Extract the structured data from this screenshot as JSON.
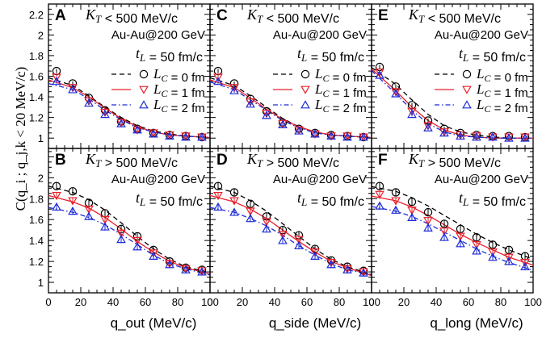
{
  "y_axis_label": "C(q_i ; q_j,k < 20 MeV/c)",
  "x_axis_labels": {
    "out": "q_out (MeV/c)",
    "side": "q_side (MeV/c)",
    "long": "q_long (MeV/c)"
  },
  "colors": {
    "lc0": "#000000",
    "lc1": "#e8202a",
    "lc2": "#1c2bd6"
  },
  "chart_data": [
    {
      "type": "line",
      "panel": "A",
      "kt_label": "K_T < 500 MeV/c",
      "system": "Au-Au@200 GeV",
      "tl": "t_L = 50 fm/c",
      "xlabel": "q_out (MeV/c)",
      "ylabel": "C",
      "xlim": [
        0,
        100
      ],
      "ylim": [
        0.9,
        2.3
      ],
      "legend": [
        "L_C = 0 fm",
        "L_C = 1 fm",
        "L_C = 2 fm"
      ],
      "x": [
        5,
        15,
        25,
        35,
        45,
        55,
        65,
        75,
        85,
        95
      ],
      "series": [
        {
          "name": "L_C = 0 fm",
          "marker": "circle",
          "values": [
            1.65,
            1.53,
            1.39,
            1.27,
            1.16,
            1.09,
            1.05,
            1.03,
            1.02,
            1.01
          ],
          "curve": [
            1.56,
            1.51,
            1.41,
            1.3,
            1.2,
            1.12,
            1.07,
            1.04,
            1.02,
            1.01
          ]
        },
        {
          "name": "L_C = 1 fm",
          "marker": "triangle-down",
          "values": [
            1.59,
            1.49,
            1.36,
            1.25,
            1.15,
            1.08,
            1.05,
            1.03,
            1.02,
            1.01
          ],
          "curve": [
            1.54,
            1.49,
            1.4,
            1.29,
            1.19,
            1.11,
            1.06,
            1.03,
            1.02,
            1.01
          ]
        },
        {
          "name": "L_C = 2 fm",
          "marker": "triangle-up",
          "values": [
            1.55,
            1.47,
            1.34,
            1.23,
            1.14,
            1.08,
            1.04,
            1.02,
            1.01,
            1.01
          ],
          "curve": [
            1.51,
            1.47,
            1.38,
            1.27,
            1.18,
            1.1,
            1.06,
            1.03,
            1.02,
            1.01
          ]
        }
      ]
    },
    {
      "type": "line",
      "panel": "C",
      "kt_label": "K_T < 500 MeV/c",
      "system": "Au-Au@200 GeV",
      "tl": "t_L = 50 fm/c",
      "xlabel": "q_side (MeV/c)",
      "ylabel": "C",
      "xlim": [
        0,
        100
      ],
      "ylim": [
        0.9,
        2.3
      ],
      "legend": [
        "L_C = 0 fm",
        "L_C = 1 fm",
        "L_C = 2 fm"
      ],
      "x": [
        5,
        15,
        25,
        35,
        45,
        55,
        65,
        75,
        85,
        95
      ],
      "series": [
        {
          "name": "L_C = 0 fm",
          "marker": "circle",
          "values": [
            1.65,
            1.53,
            1.38,
            1.26,
            1.15,
            1.09,
            1.05,
            1.03,
            1.02,
            1.01
          ],
          "curve": [
            1.56,
            1.51,
            1.41,
            1.3,
            1.19,
            1.11,
            1.06,
            1.03,
            1.02,
            1.01
          ]
        },
        {
          "name": "L_C = 1 fm",
          "marker": "triangle-down",
          "values": [
            1.59,
            1.49,
            1.35,
            1.24,
            1.14,
            1.08,
            1.04,
            1.02,
            1.02,
            1.01
          ],
          "curve": [
            1.54,
            1.49,
            1.39,
            1.28,
            1.18,
            1.11,
            1.06,
            1.03,
            1.02,
            1.01
          ]
        },
        {
          "name": "L_C = 2 fm",
          "marker": "triangle-up",
          "values": [
            1.55,
            1.46,
            1.33,
            1.22,
            1.13,
            1.07,
            1.04,
            1.02,
            1.01,
            1.01
          ],
          "curve": [
            1.52,
            1.47,
            1.37,
            1.27,
            1.17,
            1.1,
            1.05,
            1.03,
            1.02,
            1.01
          ]
        }
      ]
    },
    {
      "type": "line",
      "panel": "E",
      "kt_label": "K_T < 500 MeV/c",
      "system": "Au-Au@200 GeV",
      "tl": "t_L = 50 fm/c",
      "xlabel": "q_long (MeV/c)",
      "ylabel": "C",
      "xlim": [
        0,
        100
      ],
      "ylim": [
        0.9,
        2.3
      ],
      "legend": [
        "L_C = 0 fm",
        "L_C = 1 fm",
        "L_C = 2 fm"
      ],
      "x": [
        5,
        15,
        25,
        35,
        45,
        55,
        65,
        75,
        85,
        95
      ],
      "series": [
        {
          "name": "L_C = 0 fm",
          "marker": "circle",
          "values": [
            1.69,
            1.5,
            1.32,
            1.17,
            1.09,
            1.05,
            1.03,
            1.02,
            1.02,
            1.01
          ],
          "curve": [
            1.63,
            1.52,
            1.37,
            1.23,
            1.12,
            1.06,
            1.03,
            1.01,
            1.0,
            1.0
          ]
        },
        {
          "name": "L_C = 1 fm",
          "marker": "triangle-down",
          "values": [
            1.64,
            1.45,
            1.26,
            1.12,
            1.06,
            1.03,
            1.02,
            1.01,
            1.01,
            1.01
          ],
          "curve": [
            1.6,
            1.46,
            1.3,
            1.17,
            1.08,
            1.03,
            1.01,
            1.0,
            1.0,
            1.0
          ]
        },
        {
          "name": "L_C = 2 fm",
          "marker": "triangle-up",
          "values": [
            1.61,
            1.43,
            1.23,
            1.1,
            1.05,
            1.02,
            1.01,
            1.01,
            1.0,
            1.0
          ],
          "curve": [
            1.58,
            1.43,
            1.27,
            1.14,
            1.06,
            1.02,
            1.01,
            1.0,
            1.0,
            1.0
          ]
        }
      ]
    },
    {
      "type": "line",
      "panel": "B",
      "kt_label": "K_T > 500 MeV/c",
      "system": "Au-Au@200 GeV",
      "tl": "t_L = 50 fm/c",
      "xlabel": "q_out (MeV/c)",
      "ylabel": "C",
      "xlim": [
        0,
        100
      ],
      "ylim": [
        0.9,
        2.3
      ],
      "x": [
        5,
        15,
        25,
        35,
        45,
        55,
        65,
        75,
        85,
        95
      ],
      "series": [
        {
          "name": "L_C = 0 fm",
          "marker": "circle",
          "values": [
            1.92,
            1.87,
            1.76,
            1.66,
            1.51,
            1.44,
            1.31,
            1.2,
            1.14,
            1.12
          ],
          "curve": [
            1.9,
            1.86,
            1.79,
            1.69,
            1.57,
            1.44,
            1.32,
            1.22,
            1.15,
            1.11
          ]
        },
        {
          "name": "L_C = 1 fm",
          "marker": "triangle-down",
          "values": [
            1.83,
            1.78,
            1.7,
            1.6,
            1.47,
            1.4,
            1.28,
            1.18,
            1.13,
            1.11
          ],
          "curve": [
            1.81,
            1.77,
            1.71,
            1.62,
            1.51,
            1.39,
            1.29,
            1.2,
            1.14,
            1.1
          ]
        },
        {
          "name": "L_C = 2 fm",
          "marker": "triangle-up",
          "values": [
            1.72,
            1.68,
            1.63,
            1.53,
            1.41,
            1.34,
            1.25,
            1.17,
            1.12,
            1.1
          ],
          "curve": [
            1.7,
            1.67,
            1.62,
            1.55,
            1.46,
            1.36,
            1.26,
            1.18,
            1.13,
            1.09
          ]
        }
      ]
    },
    {
      "type": "line",
      "panel": "D",
      "kt_label": "K_T > 500 MeV/c",
      "system": "Au-Au@200 GeV",
      "tl": "t_L = 50 fm/c",
      "xlabel": "q_side (MeV/c)",
      "ylabel": "C",
      "xlim": [
        0,
        100
      ],
      "ylim": [
        0.9,
        2.3
      ],
      "x": [
        5,
        15,
        25,
        35,
        45,
        55,
        65,
        75,
        85,
        95
      ],
      "series": [
        {
          "name": "L_C = 0 fm",
          "marker": "circle",
          "values": [
            1.92,
            1.86,
            1.75,
            1.63,
            1.5,
            1.45,
            1.32,
            1.21,
            1.15,
            1.11
          ],
          "curve": [
            1.9,
            1.86,
            1.78,
            1.68,
            1.56,
            1.44,
            1.32,
            1.22,
            1.15,
            1.1
          ]
        },
        {
          "name": "L_C = 1 fm",
          "marker": "triangle-down",
          "values": [
            1.83,
            1.78,
            1.68,
            1.58,
            1.46,
            1.41,
            1.29,
            1.19,
            1.13,
            1.1
          ],
          "curve": [
            1.81,
            1.77,
            1.7,
            1.61,
            1.5,
            1.39,
            1.29,
            1.2,
            1.14,
            1.09
          ]
        },
        {
          "name": "L_C = 2 fm",
          "marker": "triangle-up",
          "values": [
            1.72,
            1.67,
            1.61,
            1.51,
            1.4,
            1.35,
            1.25,
            1.17,
            1.12,
            1.09
          ],
          "curve": [
            1.7,
            1.67,
            1.61,
            1.54,
            1.45,
            1.35,
            1.26,
            1.18,
            1.12,
            1.09
          ]
        }
      ]
    },
    {
      "type": "line",
      "panel": "F",
      "kt_label": "K_T > 500 MeV/c",
      "system": "Au-Au@200 GeV",
      "tl": "t_L = 50 fm/c",
      "xlabel": "q_long (MeV/c)",
      "ylabel": "C",
      "xlim": [
        0,
        100
      ],
      "ylim": [
        0.9,
        2.3
      ],
      "x": [
        5,
        15,
        25,
        35,
        45,
        55,
        65,
        75,
        85,
        95
      ],
      "series": [
        {
          "name": "L_C = 0 fm",
          "marker": "circle",
          "values": [
            1.92,
            1.86,
            1.77,
            1.67,
            1.56,
            1.51,
            1.43,
            1.36,
            1.31,
            1.25
          ],
          "curve": [
            1.9,
            1.87,
            1.81,
            1.73,
            1.64,
            1.55,
            1.46,
            1.38,
            1.31,
            1.25
          ]
        },
        {
          "name": "L_C = 1 fm",
          "marker": "triangle-down",
          "values": [
            1.84,
            1.78,
            1.69,
            1.59,
            1.49,
            1.44,
            1.36,
            1.29,
            1.24,
            1.19
          ],
          "curve": [
            1.81,
            1.78,
            1.72,
            1.64,
            1.55,
            1.46,
            1.38,
            1.31,
            1.24,
            1.19
          ]
        },
        {
          "name": "L_C = 2 fm",
          "marker": "triangle-up",
          "values": [
            1.73,
            1.69,
            1.62,
            1.52,
            1.43,
            1.37,
            1.3,
            1.24,
            1.2,
            1.15
          ],
          "curve": [
            1.71,
            1.68,
            1.63,
            1.56,
            1.48,
            1.4,
            1.32,
            1.25,
            1.19,
            1.14
          ]
        }
      ]
    }
  ]
}
